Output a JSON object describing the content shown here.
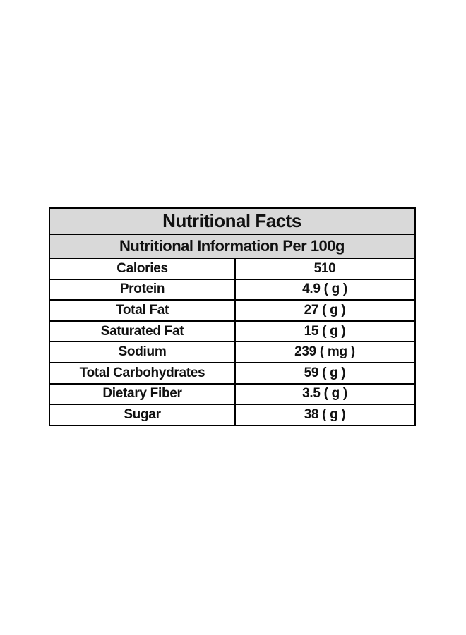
{
  "table": {
    "title": "Nutritional Facts",
    "subtitle": "Nutritional Information Per 100g",
    "rows": [
      [
        "Calories",
        "510"
      ],
      [
        "Protein",
        "4.9 ( g )"
      ],
      [
        "Total Fat",
        "27 ( g )"
      ],
      [
        "Saturated Fat",
        "15 ( g )"
      ],
      [
        "Sodium",
        "239 ( mg )"
      ],
      [
        "Total Carbohydrates",
        "59 ( g )"
      ],
      [
        "Dietary Fiber",
        "3.5 ( g )"
      ],
      [
        "Sugar",
        "38 ( g )"
      ]
    ]
  }
}
